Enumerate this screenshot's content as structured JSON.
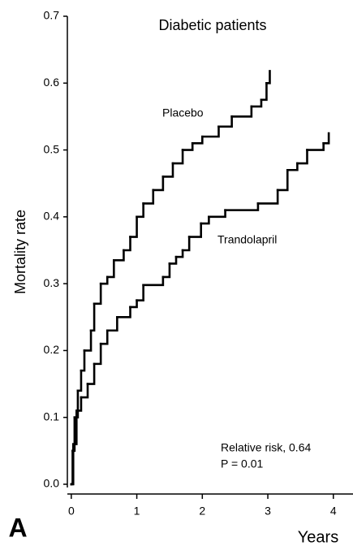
{
  "chart_data": {
    "type": "step",
    "title": "Diabetic patients",
    "y_label": "Mortality rate",
    "x_label": "Years",
    "panel_label": "A",
    "annotations": [
      "Relative risk,  0.64",
      "P = 0.01"
    ],
    "xlim": [
      -0.06,
      4.3
    ],
    "ylim": [
      0,
      0.7
    ],
    "xticks": [
      0,
      1,
      2,
      3,
      4
    ],
    "yticks": [
      {
        "value": 0,
        "label": "0.0"
      },
      0.1,
      0.2,
      0.3,
      0.4,
      0.5,
      0.6,
      0.7
    ],
    "color": "#000000",
    "series": [
      {
        "name": "Placebo",
        "x": [
          0,
          0.02,
          0.05,
          0.1,
          0.15,
          0.2,
          0.3,
          0.35,
          0.45,
          0.55,
          0.65,
          0.8,
          0.9,
          1.0,
          1.1,
          1.25,
          1.4,
          1.55,
          1.7,
          1.85,
          2.0,
          2.25,
          2.45,
          2.75,
          2.9,
          2.98,
          3.03
        ],
        "values": [
          0,
          0.05,
          0.1,
          0.14,
          0.17,
          0.2,
          0.23,
          0.27,
          0.3,
          0.31,
          0.335,
          0.35,
          0.37,
          0.4,
          0.42,
          0.44,
          0.46,
          0.48,
          0.5,
          0.51,
          0.52,
          0.535,
          0.55,
          0.565,
          0.575,
          0.6,
          0.618
        ]
      },
      {
        "name": "Trandolapril",
        "x": [
          0,
          0.03,
          0.08,
          0.15,
          0.25,
          0.35,
          0.45,
          0.55,
          0.7,
          0.9,
          1.0,
          1.1,
          1.4,
          1.5,
          1.6,
          1.7,
          1.8,
          1.98,
          2.1,
          2.35,
          2.85,
          3.15,
          3.3,
          3.45,
          3.6,
          3.85,
          3.93
        ],
        "values": [
          0,
          0.06,
          0.11,
          0.13,
          0.15,
          0.18,
          0.21,
          0.23,
          0.25,
          0.265,
          0.275,
          0.298,
          0.31,
          0.33,
          0.34,
          0.35,
          0.37,
          0.39,
          0.4,
          0.41,
          0.42,
          0.44,
          0.47,
          0.48,
          0.5,
          0.51,
          0.525
        ]
      }
    ]
  }
}
